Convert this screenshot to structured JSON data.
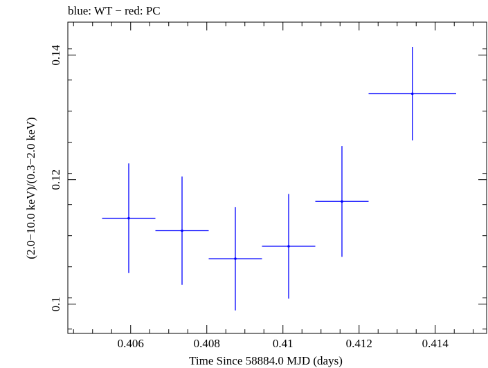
{
  "chart_data": {
    "type": "scatter",
    "title": "blue: WT − red: PC",
    "xlabel": "Time Since 58884.0 MJD (days)",
    "ylabel": "(2.0−10.0 keV)/(0.3−2.0 keV)",
    "xlim": [
      0.40435,
      0.41535
    ],
    "ylim": [
      0.0953,
      0.1453
    ],
    "xticks": [
      0.406,
      0.408,
      0.41,
      0.412,
      0.414
    ],
    "xtick_labels": [
      "0.406",
      "0.408",
      "0.41",
      "0.412",
      "0.414"
    ],
    "yticks": [
      0.1,
      0.12,
      0.14
    ],
    "ytick_labels": [
      "0.1",
      "0.12",
      "0.14"
    ],
    "grid": false,
    "color": "#0000ff",
    "series": [
      {
        "points": [
          {
            "x": 0.40595,
            "y": 0.1138,
            "xerr": 0.0007,
            "yerr": 0.0088
          },
          {
            "x": 0.40735,
            "y": 0.1118,
            "xerr": 0.0007,
            "yerr": 0.0087
          },
          {
            "x": 0.40875,
            "y": 0.1073,
            "xerr": 0.0007,
            "yerr": 0.0083
          },
          {
            "x": 0.41015,
            "y": 0.1093,
            "xerr": 0.0007,
            "yerr": 0.0084
          },
          {
            "x": 0.41155,
            "y": 0.1165,
            "xerr": 0.0007,
            "yerr": 0.0089
          },
          {
            "x": 0.4134,
            "y": 0.1338,
            "xerr": 0.00115,
            "yerr": 0.0075
          }
        ]
      }
    ]
  }
}
